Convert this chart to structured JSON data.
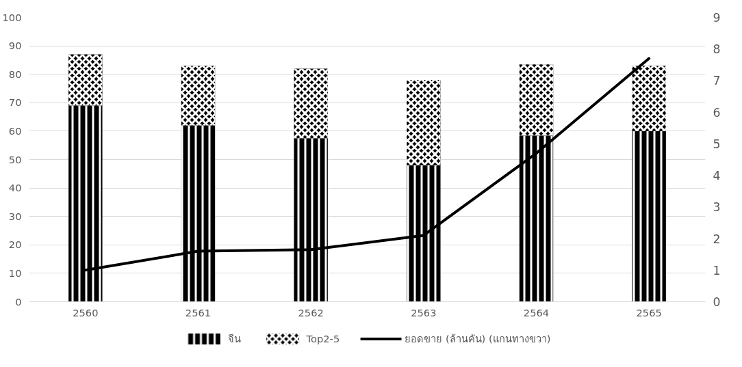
{
  "chart_data": {
    "type": "bar",
    "stacked": true,
    "categories": [
      "2560",
      "2561",
      "2562",
      "2563",
      "2564",
      "2565"
    ],
    "series": [
      {
        "name": "จีน",
        "color": "#000000",
        "values": [
          69,
          62,
          57.5,
          48,
          58.5,
          60
        ]
      },
      {
        "name": "Top2-5",
        "color": "#000000",
        "values": [
          18,
          21,
          24.5,
          30,
          25,
          23
        ]
      },
      {
        "name": "ยอดขาย (ล้านคัน) (แกนทางขวา)",
        "type": "line",
        "axis": "y2",
        "color": "#000000",
        "values": [
          1.0,
          1.6,
          1.65,
          2.1,
          4.7,
          7.7
        ]
      }
    ],
    "ylim": [
      0,
      100
    ],
    "yticks": [
      0,
      10,
      20,
      30,
      40,
      50,
      60,
      70,
      80,
      90,
      100
    ],
    "y2lim": [
      0,
      9
    ],
    "y2ticks": [
      0,
      1,
      2,
      3,
      4,
      5,
      6,
      7,
      8,
      9
    ],
    "grid": "y",
    "legend": "bottom",
    "marker": "none",
    "line_style": "solid"
  }
}
